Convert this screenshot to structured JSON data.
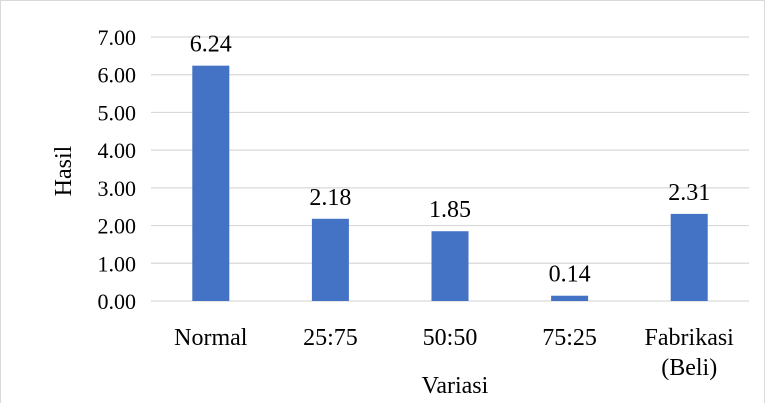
{
  "chart_data": {
    "type": "bar",
    "categories": [
      "Normal",
      "25:75",
      "50:50",
      "75:25",
      "Fabrikasi\n(Beli)"
    ],
    "values": [
      6.24,
      2.18,
      1.85,
      0.14,
      2.31
    ],
    "value_labels": [
      "6.24",
      "2.18",
      "1.85",
      "0.14",
      "2.31"
    ],
    "title": "",
    "xlabel": "Variasi",
    "ylabel": "Hasil",
    "ylim": [
      0,
      7
    ],
    "yticks": [
      0,
      1,
      2,
      3,
      4,
      5,
      6,
      7
    ],
    "ytick_labels": [
      "0.00",
      "1.00",
      "2.00",
      "3.00",
      "4.00",
      "5.00",
      "6.00",
      "7.00"
    ],
    "grid": true,
    "legend": "none",
    "bar_color": "#4472C4",
    "grid_color": "#d9d9d9"
  }
}
